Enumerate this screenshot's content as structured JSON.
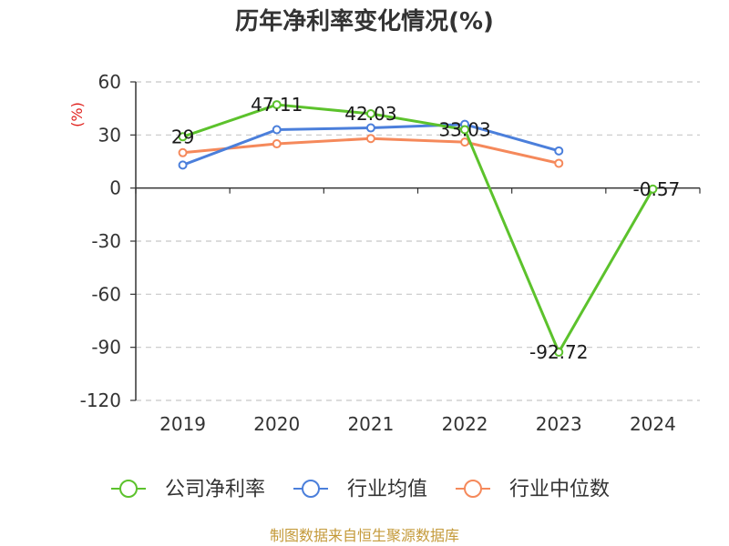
{
  "source": "制图数据来自恒生聚源数据库",
  "chart_data": {
    "type": "line",
    "title": "历年净利率变化情况(%)",
    "ylabel": "(%)",
    "xlabel": "",
    "categories": [
      "2019",
      "2020",
      "2021",
      "2022",
      "2023",
      "2024"
    ],
    "ylim": [
      -120,
      60
    ],
    "yticks": [
      60,
      30,
      0,
      -30,
      -60,
      -90,
      -120
    ],
    "grid": true,
    "legend": "bottom",
    "series": [
      {
        "name": "公司净利率",
        "color": "#5cc22c",
        "show_values": true,
        "values": [
          29,
          47.11,
          42.03,
          33.03,
          -92.72,
          -0.57
        ]
      },
      {
        "name": "行业均值",
        "color": "#4b7fdb",
        "show_values": false,
        "values": [
          13,
          33,
          34,
          36,
          21,
          null
        ]
      },
      {
        "name": "行业中位数",
        "color": "#f5895b",
        "show_values": false,
        "values": [
          20,
          25,
          28,
          26,
          14,
          null
        ]
      }
    ]
  }
}
